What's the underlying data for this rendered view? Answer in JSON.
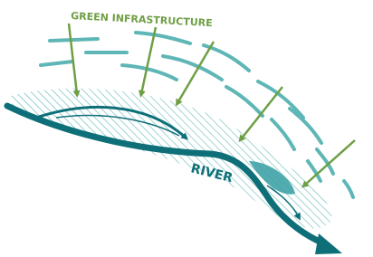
{
  "labels": {
    "green_infrastructure": "GREEN INFRASTRUCTURE",
    "river": "RIVER"
  }
}
